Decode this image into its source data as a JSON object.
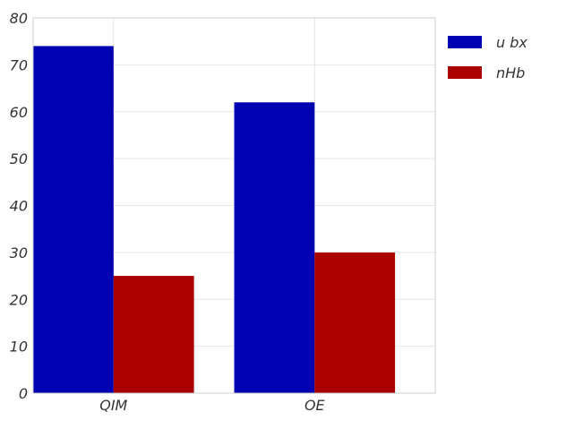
{
  "chart_data": {
    "type": "bar",
    "categories": [
      "QIM",
      "OE"
    ],
    "series": [
      {
        "name": "u bx",
        "values": [
          74,
          62
        ],
        "color": "#0000b3"
      },
      {
        "name": "nHb",
        "values": [
          25,
          30
        ],
        "color": "#aa0000"
      }
    ],
    "ylim": [
      0,
      80
    ],
    "yticks": [
      0,
      10,
      20,
      30,
      40,
      50,
      60,
      70,
      80
    ],
    "grid": true,
    "legend": "right-top"
  }
}
